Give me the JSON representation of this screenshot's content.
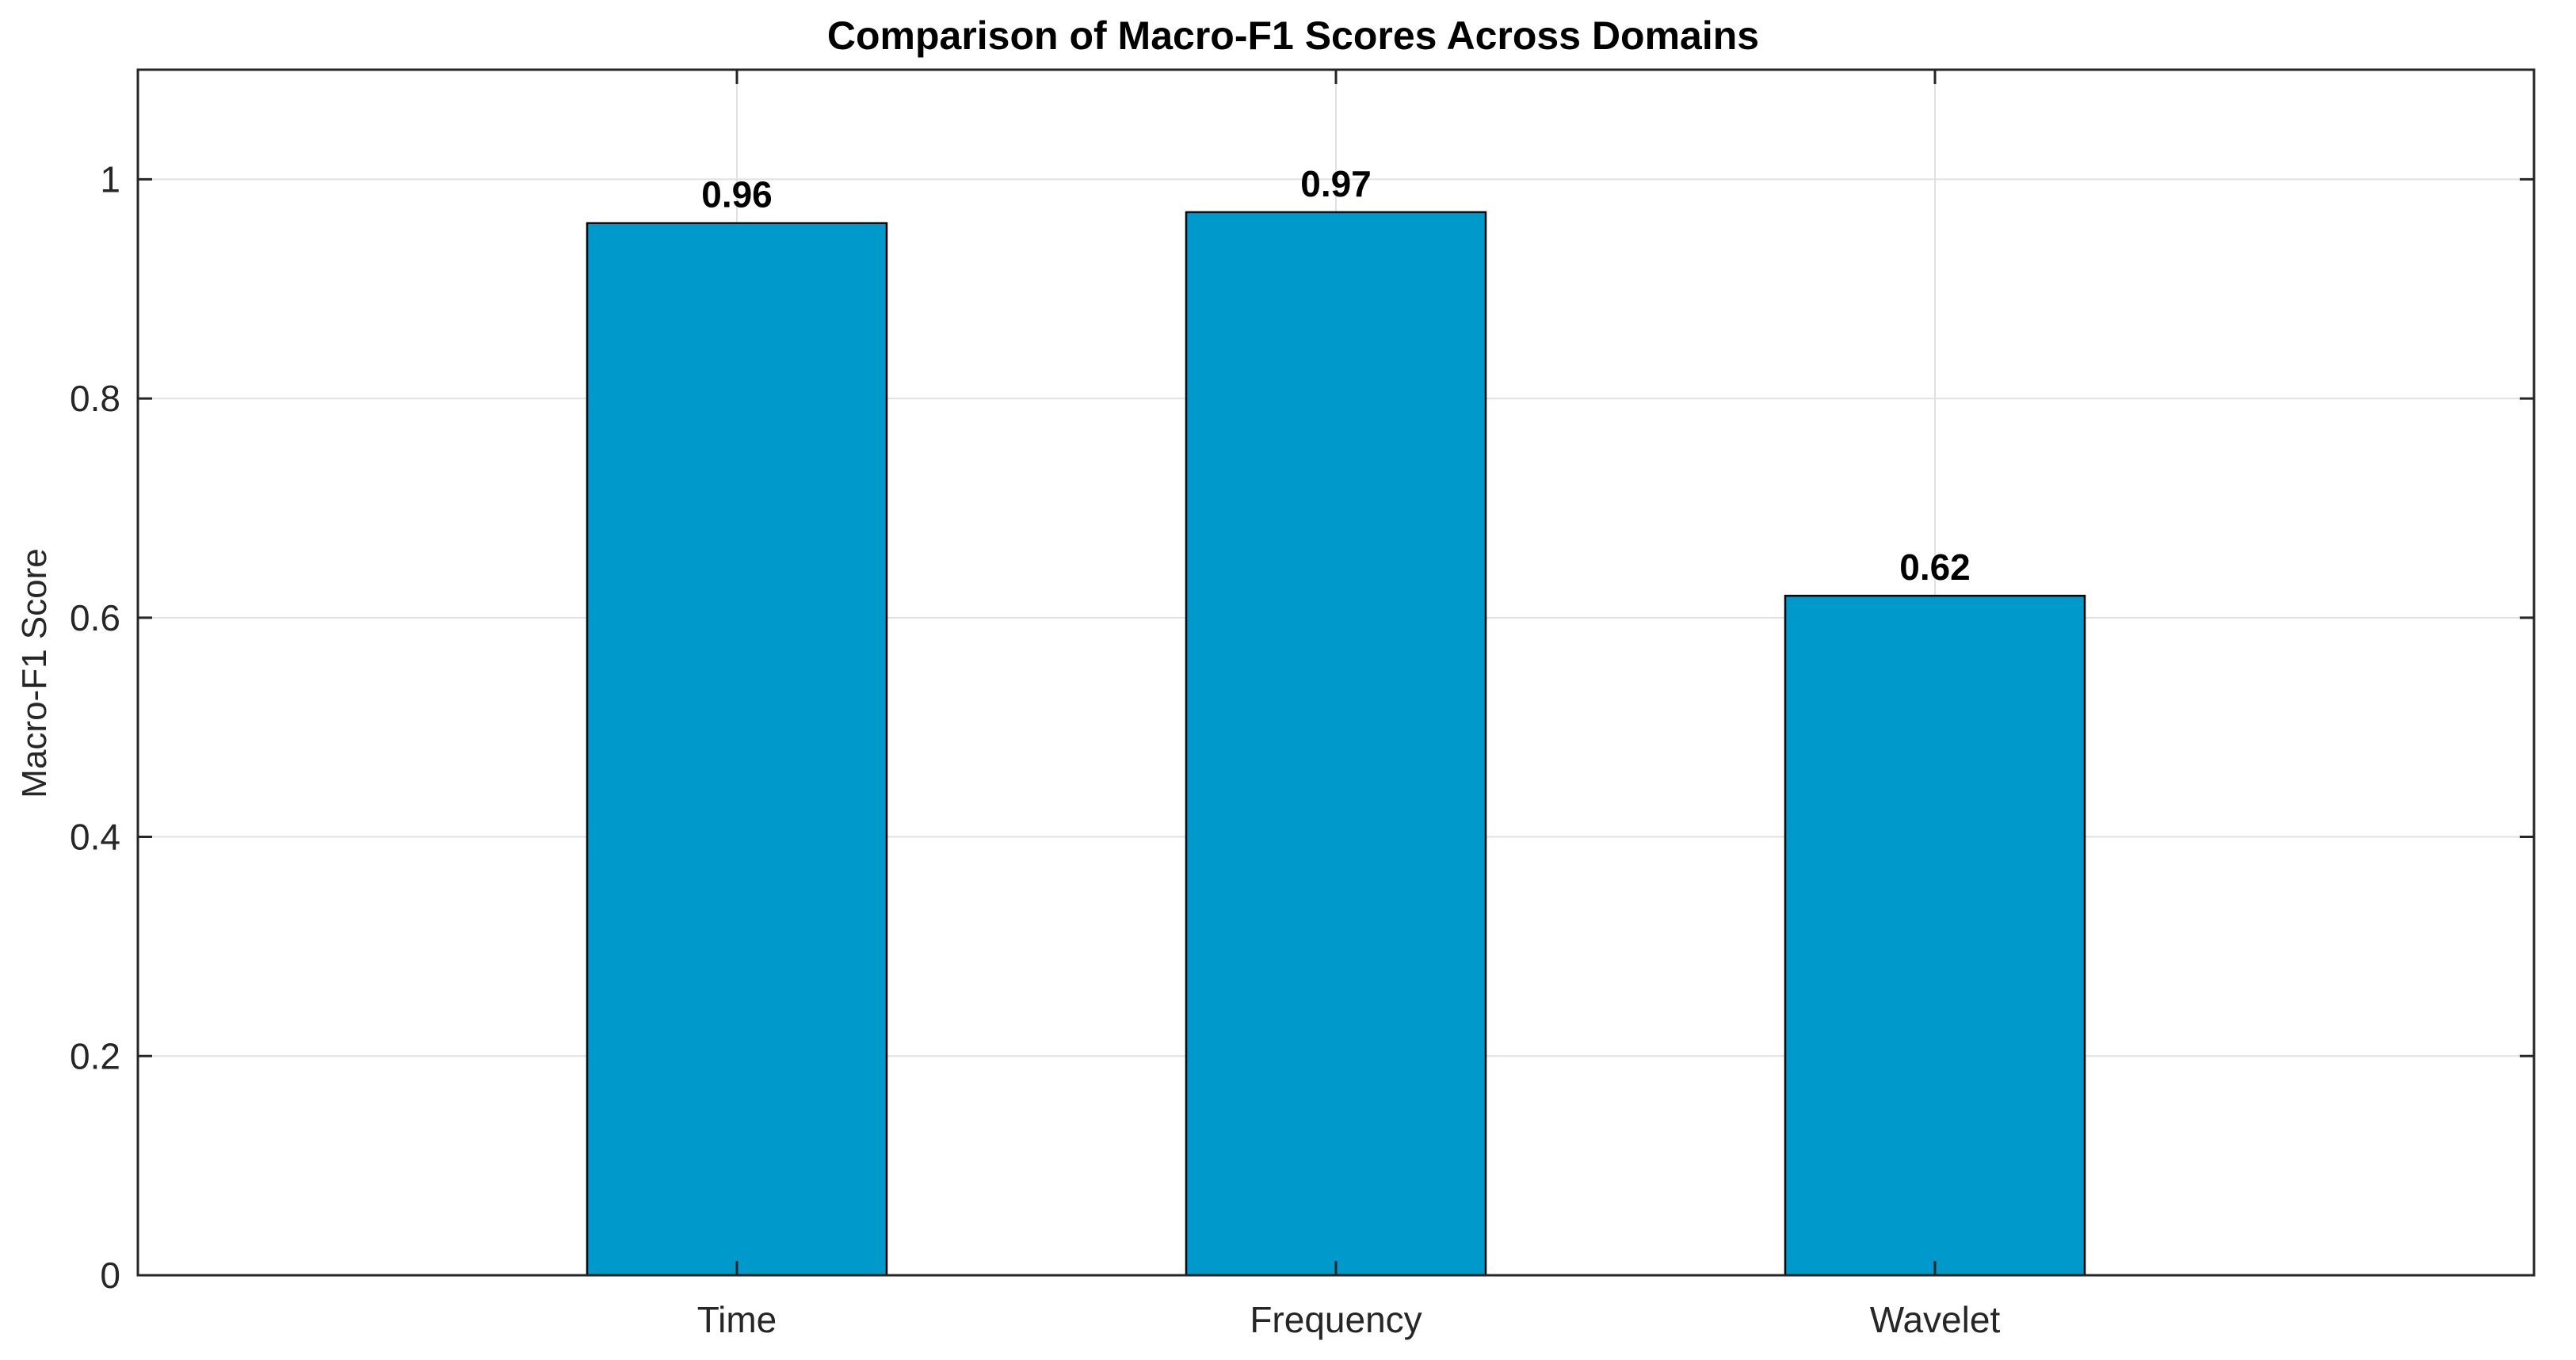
{
  "chart_data": {
    "type": "bar",
    "title": "Comparison of Macro-F1 Scores Across Domains",
    "xlabel": "",
    "ylabel": "Macro-F1 Score",
    "categories": [
      "Time",
      "Frequency",
      "Wavelet"
    ],
    "values": [
      0.96,
      0.97,
      0.62
    ],
    "data_labels": [
      "0.96",
      "0.97",
      "0.62"
    ],
    "ylim": [
      0,
      1.1
    ],
    "yticks": [
      0,
      0.2,
      0.4,
      0.6,
      0.8,
      1
    ],
    "ytick_labels": [
      "0",
      "0.2",
      "0.4",
      "0.6",
      "0.8",
      "1"
    ],
    "xlim": [
      0,
      4
    ],
    "grid": true,
    "legend": "none",
    "colors": {
      "bar_fill": "#0099CC",
      "bar_edge": "#000000",
      "grid": "#E1E1E1",
      "axes": "#262626",
      "background": "#FFFFFF"
    }
  }
}
